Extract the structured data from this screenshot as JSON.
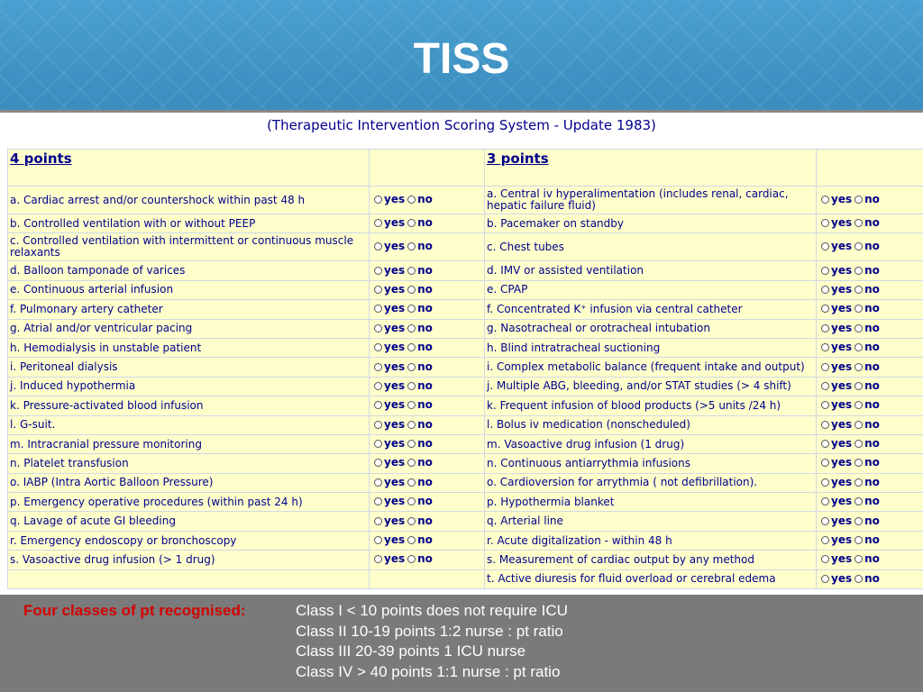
{
  "slide": {
    "title": "TISS"
  },
  "form": {
    "caption": "(Therapeutic Intervention Scoring System - Update 1983)",
    "yes_label": "yes",
    "no_label": "no",
    "left_header": "4 points",
    "right_header": "3 points",
    "rows": [
      {
        "left": "a. Cardiac arrest and/or countershock within past 48 h",
        "right": "a. Central iv hyperalimentation (includes renal, cardiac, hepatic failure fluid)"
      },
      {
        "left": "b. Controlled ventilation with or without PEEP",
        "right": "b. Pacemaker on standby"
      },
      {
        "left": "c. Controlled ventilation with intermittent or continuous muscle relaxants",
        "right": "c. Chest tubes"
      },
      {
        "left": "d. Balloon tamponade of varices",
        "right": "d. IMV or assisted ventilation"
      },
      {
        "left": "e. Continuous arterial infusion",
        "right": "e. CPAP"
      },
      {
        "left": "f. Pulmonary artery catheter",
        "right": "f. Concentrated K⁺ infusion via central catheter"
      },
      {
        "left": "g. Atrial and/or ventricular pacing",
        "right": "g. Nasotracheal or orotracheal intubation"
      },
      {
        "left": "h. Hemodialysis in unstable patient",
        "right": "h. Blind intratracheal suctioning"
      },
      {
        "left": "i. Peritoneal dialysis",
        "right": "i. Complex metabolic balance (frequent intake and output)"
      },
      {
        "left": "j. Induced hypothermia",
        "right": "j. Multiple ABG, bleeding, and/or STAT studies (> 4 shift)"
      },
      {
        "left": "k. Pressure-activated blood infusion",
        "right": "k. Frequent infusion of blood products (>5 units /24 h)"
      },
      {
        "left": "l. G-suit.",
        "right": "l. Bolus iv medication (nonscheduled)"
      },
      {
        "left": "m. Intracranial pressure monitoring",
        "right": "m. Vasoactive drug infusion (1 drug)"
      },
      {
        "left": "n. Platelet transfusion",
        "right": "n. Continuous antiarrythmia infusions"
      },
      {
        "left": "o. IABP (Intra Aortic Balloon Pressure)",
        "right": "o. Cardioversion for arrythmia ( not defibrillation)."
      },
      {
        "left": "p. Emergency operative procedures (within past 24 h)",
        "right": "p. Hypothermia blanket"
      },
      {
        "left": "q. Lavage of acute GI bleeding",
        "right": "q. Arterial line"
      },
      {
        "left": "r. Emergency endoscopy or bronchoscopy",
        "right": "r. Acute digitalization - within 48 h"
      },
      {
        "left": "s. Vasoactive drug infusion (> 1 drug)",
        "right": "s. Measurement of cardiac output by any method"
      },
      {
        "left": "",
        "right": "t. Active diuresis for fluid overload or cerebral edema"
      }
    ]
  },
  "footer": {
    "label": "Four classes of pt recognised:",
    "lines": [
      "Class I < 10 points does not require ICU",
      "Class II 10-19 points 1:2 nurse : pt ratio",
      "Class III 20-39 points 1 ICU nurse",
      "Class IV > 40 points 1:1 nurse : pt ratio"
    ]
  }
}
